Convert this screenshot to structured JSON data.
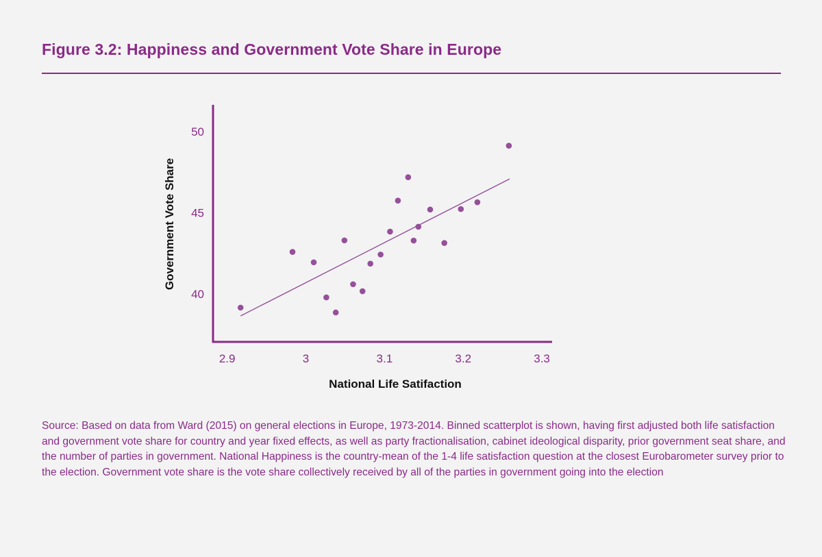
{
  "title": "Figure 3.2: Happiness and Government Vote Share in Europe",
  "source": "Source: Based on data from Ward (2015) on general elections in Europe, 1973-2014. Binned scatterplot is shown, having first adjusted both life satisfaction and government vote share for country and year fixed effects, as well as party fractionalisation, cabinet ideological disparity, prior government seat share, and the number of parties in government. National Happiness is the country-mean of the 1-4 life satisfaction question at the closest Eurobarometer survey prior to the election. Government vote share is the vote share collectively received by all of the parties in government going into the election",
  "colors": {
    "accent": "#8b2a88",
    "points": "#95509a",
    "line": "#95509a"
  },
  "chart_data": {
    "type": "scatter",
    "title": "",
    "xlabel": "National Life Satifaction",
    "ylabel": "Government Vote Share",
    "xlim": [
      2.882,
      3.313
    ],
    "ylim": [
      37.05,
      51.65
    ],
    "xticks": [
      2.9,
      3.0,
      3.1,
      3.2,
      3.3
    ],
    "xtick_labels": [
      "2.9",
      "3",
      "3.1",
      "3.2",
      "3.3"
    ],
    "yticks": [
      40,
      45,
      50
    ],
    "ytick_labels": [
      "40",
      "45",
      "50"
    ],
    "grid": false,
    "points": [
      {
        "x": 2.917,
        "y": 39.16
      },
      {
        "x": 2.983,
        "y": 42.59
      },
      {
        "x": 3.01,
        "y": 41.95
      },
      {
        "x": 3.026,
        "y": 39.79
      },
      {
        "x": 3.038,
        "y": 38.86
      },
      {
        "x": 3.049,
        "y": 43.3
      },
      {
        "x": 3.06,
        "y": 40.6
      },
      {
        "x": 3.072,
        "y": 40.17
      },
      {
        "x": 3.082,
        "y": 41.87
      },
      {
        "x": 3.095,
        "y": 42.43
      },
      {
        "x": 3.107,
        "y": 43.84
      },
      {
        "x": 3.117,
        "y": 45.75
      },
      {
        "x": 3.13,
        "y": 47.19
      },
      {
        "x": 3.137,
        "y": 43.29
      },
      {
        "x": 3.143,
        "y": 44.14
      },
      {
        "x": 3.158,
        "y": 45.2
      },
      {
        "x": 3.176,
        "y": 43.14
      },
      {
        "x": 3.197,
        "y": 45.23
      },
      {
        "x": 3.218,
        "y": 45.65
      },
      {
        "x": 3.258,
        "y": 49.13
      }
    ],
    "fit_line": [
      {
        "x": 2.917,
        "y": 38.65
      },
      {
        "x": 3.259,
        "y": 47.09
      }
    ]
  }
}
